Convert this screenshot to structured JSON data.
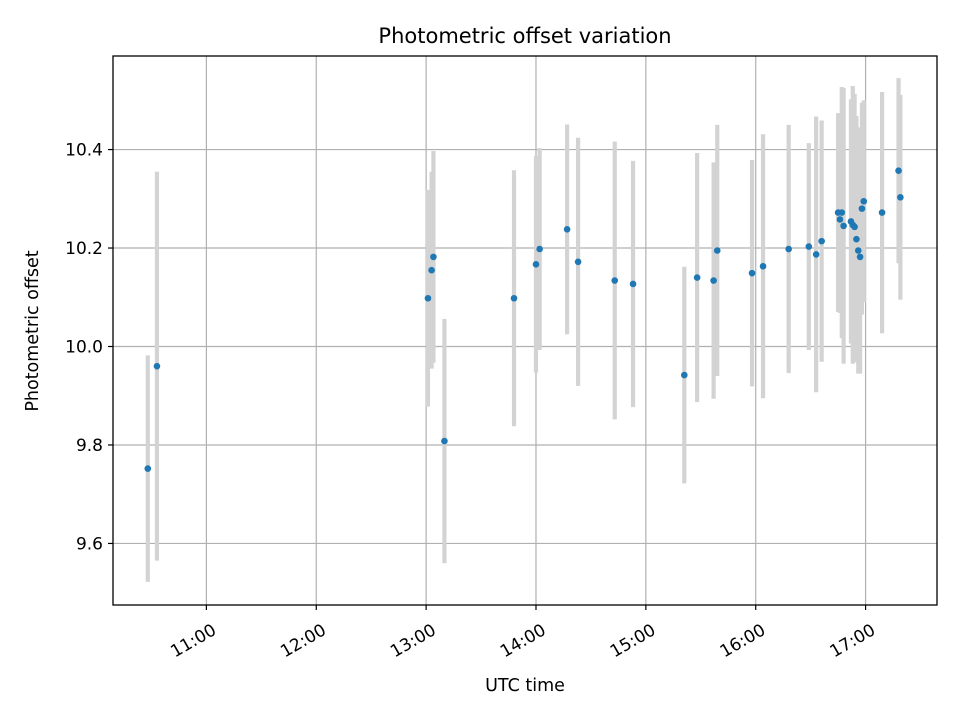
{
  "chart_data": {
    "type": "scatter",
    "title": "Photometric offset variation",
    "xlabel": "UTC time",
    "ylabel": "Photometric offset",
    "x_unit": "hours UTC",
    "xlim": [
      "10:09",
      "17:39"
    ],
    "ylim": [
      9.475,
      10.59
    ],
    "x_ticks": [
      "11:00",
      "12:00",
      "13:00",
      "14:00",
      "15:00",
      "16:00",
      "17:00"
    ],
    "y_ticks": [
      9.6,
      9.8,
      10.0,
      10.2,
      10.4
    ],
    "grid": true,
    "colors": {
      "marker": "#1f77b4",
      "errorbar": "#d3d3d3",
      "grid": "#b0b0b0"
    },
    "points": [
      {
        "x": "10:28",
        "y": 9.752,
        "err": 0.23
      },
      {
        "x": "10:33",
        "y": 9.96,
        "err": 0.395
      },
      {
        "x": "13:01",
        "y": 10.098,
        "err": 0.22
      },
      {
        "x": "13:03",
        "y": 10.155,
        "err": 0.2
      },
      {
        "x": "13:04",
        "y": 10.182,
        "err": 0.215
      },
      {
        "x": "13:10",
        "y": 9.808,
        "err": 0.248
      },
      {
        "x": "13:48",
        "y": 10.098,
        "err": 0.26
      },
      {
        "x": "14:00",
        "y": 10.167,
        "err": 0.22
      },
      {
        "x": "14:02",
        "y": 10.198,
        "err": 0.205
      },
      {
        "x": "14:17",
        "y": 10.238,
        "err": 0.213
      },
      {
        "x": "14:23",
        "y": 10.172,
        "err": 0.252
      },
      {
        "x": "14:43",
        "y": 10.134,
        "err": 0.282
      },
      {
        "x": "14:53",
        "y": 10.127,
        "err": 0.25
      },
      {
        "x": "15:21",
        "y": 9.942,
        "err": 0.22
      },
      {
        "x": "15:28",
        "y": 10.14,
        "err": 0.253
      },
      {
        "x": "15:37",
        "y": 10.134,
        "err": 0.24
      },
      {
        "x": "15:39",
        "y": 10.195,
        "err": 0.255
      },
      {
        "x": "15:58",
        "y": 10.149,
        "err": 0.23
      },
      {
        "x": "16:04",
        "y": 10.163,
        "err": 0.268
      },
      {
        "x": "16:18",
        "y": 10.198,
        "err": 0.252
      },
      {
        "x": "16:29",
        "y": 10.203,
        "err": 0.21
      },
      {
        "x": "16:33",
        "y": 10.187,
        "err": 0.28
      },
      {
        "x": "16:36",
        "y": 10.214,
        "err": 0.245
      },
      {
        "x": "16:45",
        "y": 10.272,
        "err": 0.202
      },
      {
        "x": "16:46",
        "y": 10.258,
        "err": 0.19
      },
      {
        "x": "16:47",
        "y": 10.272,
        "err": 0.255
      },
      {
        "x": "16:48",
        "y": 10.245,
        "err": 0.28
      },
      {
        "x": "16:52",
        "y": 10.254,
        "err": 0.248
      },
      {
        "x": "16:53",
        "y": 10.247,
        "err": 0.282
      },
      {
        "x": "16:54",
        "y": 10.243,
        "err": 0.27
      },
      {
        "x": "16:55",
        "y": 10.218,
        "err": 0.25
      },
      {
        "x": "16:56",
        "y": 10.195,
        "err": 0.25
      },
      {
        "x": "16:57",
        "y": 10.182,
        "err": 0.237
      },
      {
        "x": "16:58",
        "y": 10.28,
        "err": 0.215
      },
      {
        "x": "16:59",
        "y": 10.295,
        "err": 0.205
      },
      {
        "x": "17:09",
        "y": 10.272,
        "err": 0.245
      },
      {
        "x": "17:18",
        "y": 10.357,
        "err": 0.188
      },
      {
        "x": "17:19",
        "y": 10.303,
        "err": 0.208
      }
    ]
  }
}
